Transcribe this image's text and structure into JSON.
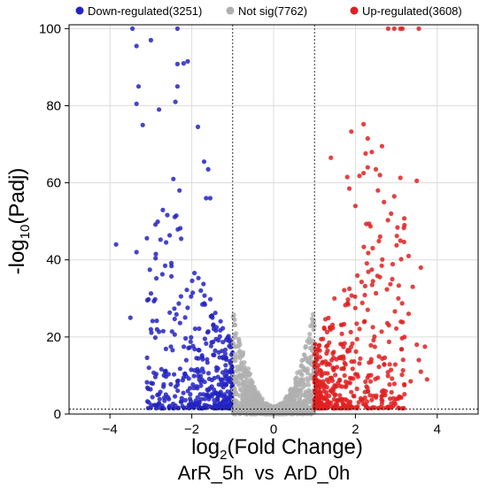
{
  "chart_data": {
    "type": "scatter",
    "title": "ArR_5h  vs  ArD_0h",
    "xlabel": {
      "base": "log",
      "sub": "2",
      "rest": "(Fold Change)"
    },
    "ylabel": {
      "base": "-log",
      "sub": "10",
      "rest": "(Padj)"
    },
    "xlim": [
      -5,
      5
    ],
    "ylim": [
      0,
      101
    ],
    "xticks": [
      -4,
      -2,
      0,
      2,
      4
    ],
    "yticks": [
      0,
      20,
      40,
      60,
      80,
      100
    ],
    "grid": true,
    "legend_position": "top",
    "thresholds": {
      "x": [
        -1,
        1
      ],
      "y": 1.3
    },
    "series": [
      {
        "name": "Down-regulated(3251)",
        "color": "#2323c2",
        "points": [
          [
            -3.45,
            100
          ],
          [
            -2.35,
            100
          ],
          [
            -3.35,
            95.5
          ],
          [
            -3.0,
            97
          ],
          [
            -2.2,
            91
          ],
          [
            -2.35,
            90.8
          ],
          [
            -2.1,
            91.5
          ],
          [
            -3.3,
            85
          ],
          [
            -2.35,
            85
          ],
          [
            -3.35,
            80.5
          ],
          [
            -2.8,
            79
          ],
          [
            -2.4,
            81
          ],
          [
            -3.2,
            75
          ],
          [
            -1.85,
            74.5
          ],
          [
            -1.7,
            65.5
          ],
          [
            -1.6,
            63.5
          ],
          [
            -2.45,
            61
          ],
          [
            -2.3,
            58
          ],
          [
            -1.55,
            56
          ],
          [
            -1.65,
            56
          ],
          [
            -3.85,
            44
          ],
          [
            -3.35,
            42
          ],
          [
            -3.5,
            25
          ],
          [
            -3.0,
            22
          ],
          [
            -2.85,
            22
          ]
        ],
        "cloud": {
          "x_range": [
            -3.1,
            -1.0
          ],
          "y_range": [
            1.5,
            55
          ],
          "count": 420
        }
      },
      {
        "name": "Not sig(7762)",
        "color": "#b0b0b0",
        "cloud": {
          "x_range": [
            -1.0,
            1.0
          ],
          "y_range": [
            0,
            30
          ],
          "count": 900
        }
      },
      {
        "name": "Up-regulated(3608)",
        "color": "#e02020",
        "points": [
          [
            2.8,
            100
          ],
          [
            2.95,
            100
          ],
          [
            3.1,
            100
          ],
          [
            3.15,
            100
          ],
          [
            3.55,
            100
          ],
          [
            2.2,
            75.2
          ],
          [
            1.9,
            73.3
          ],
          [
            2.3,
            71.5
          ],
          [
            2.4,
            68
          ],
          [
            2.25,
            67.6
          ],
          [
            2.65,
            69.5
          ],
          [
            1.4,
            66.5
          ],
          [
            2.3,
            64
          ],
          [
            2.5,
            63.5
          ],
          [
            2.2,
            62.5
          ],
          [
            2.1,
            61.8
          ],
          [
            2.6,
            62
          ],
          [
            1.8,
            61.5
          ],
          [
            3.5,
            60.5
          ],
          [
            3.1,
            61.3
          ],
          [
            1.85,
            58.5
          ],
          [
            2.55,
            58
          ],
          [
            2.95,
            56.5
          ],
          [
            2.7,
            55
          ],
          [
            2.0,
            54
          ],
          [
            3.2,
            49
          ],
          [
            3.1,
            45
          ],
          [
            3.3,
            41
          ],
          [
            3.6,
            38
          ],
          [
            3.4,
            33
          ],
          [
            3.3,
            26
          ],
          [
            3.5,
            18
          ],
          [
            3.7,
            17.5
          ],
          [
            3.6,
            11
          ],
          [
            3.35,
            8.5
          ],
          [
            3.75,
            9
          ],
          [
            3.55,
            14
          ],
          [
            3.2,
            20
          ],
          [
            3.05,
            30
          ],
          [
            2.9,
            35
          ]
        ],
        "cloud": {
          "x_range": [
            1.0,
            3.2
          ],
          "y_range": [
            1.5,
            55
          ],
          "count": 460
        }
      }
    ]
  }
}
